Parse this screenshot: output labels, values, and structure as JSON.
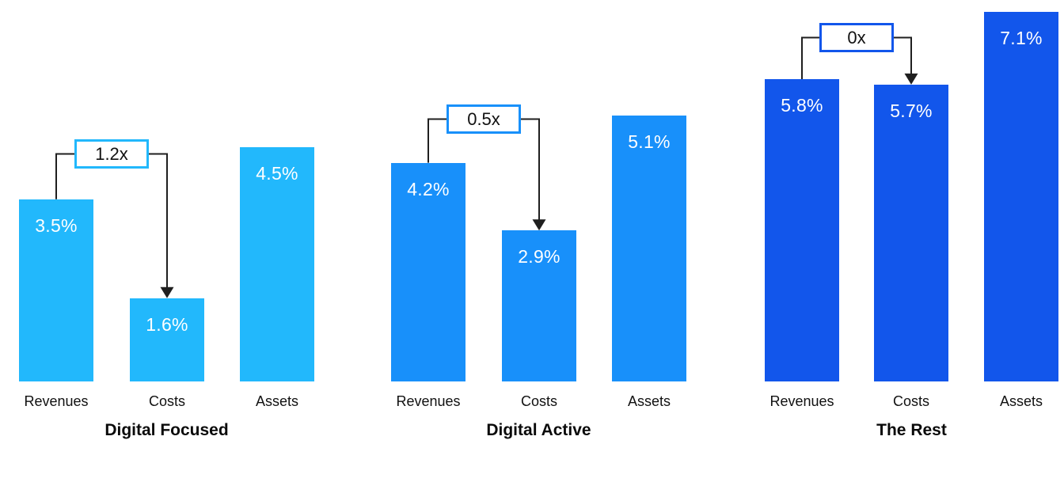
{
  "chart_data": {
    "type": "bar",
    "unit": "%",
    "categories": [
      "Revenues",
      "Costs",
      "Assets"
    ],
    "groups": [
      {
        "title": "Digital Focused",
        "color": "#22B8FC",
        "annotation": {
          "label": "1.2x",
          "from": "Revenues",
          "to": "Costs"
        },
        "bars": [
          {
            "category": "Revenues",
            "value": 3.5,
            "label": "3.5%"
          },
          {
            "category": "Costs",
            "value": 1.6,
            "label": "1.6%"
          },
          {
            "category": "Assets",
            "value": 4.5,
            "label": "4.5%"
          }
        ]
      },
      {
        "title": "Digital Active",
        "color": "#1890FA",
        "annotation": {
          "label": "0.5x",
          "from": "Revenues",
          "to": "Costs"
        },
        "bars": [
          {
            "category": "Revenues",
            "value": 4.2,
            "label": "4.2%"
          },
          {
            "category": "Costs",
            "value": 2.9,
            "label": "2.9%"
          },
          {
            "category": "Assets",
            "value": 5.1,
            "label": "5.1%"
          }
        ]
      },
      {
        "title": "The Rest",
        "color": "#1256EB",
        "annotation": {
          "label": "0x",
          "from": "Revenues",
          "to": "Costs"
        },
        "bars": [
          {
            "category": "Revenues",
            "value": 5.8,
            "label": "5.8%"
          },
          {
            "category": "Costs",
            "value": 5.7,
            "label": "5.7%"
          },
          {
            "category": "Assets",
            "value": 7.1,
            "label": "7.1%"
          }
        ]
      }
    ],
    "value_label_color": "#ffffff",
    "line_color": "#1f1f1f",
    "text_color": "#111111",
    "legend": "none",
    "grid": "off",
    "ylim": [
      0,
      7.5
    ]
  }
}
